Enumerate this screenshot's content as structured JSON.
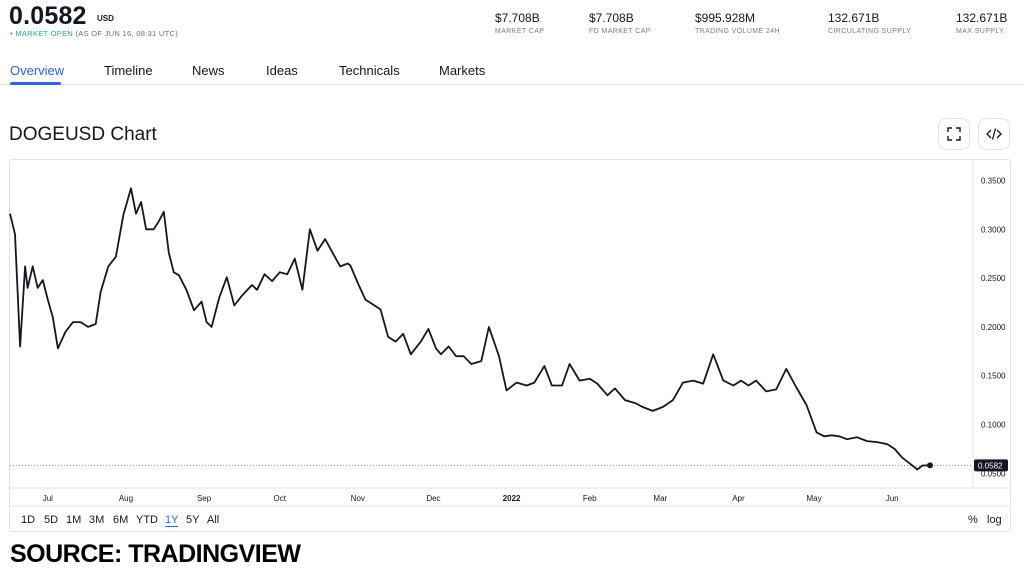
{
  "header": {
    "price": "0.0582",
    "currency": "USD",
    "status_dot": "•",
    "status_open": "MARKET OPEN",
    "status_time": "(AS OF JUN 16, 08:31 UTC)",
    "stats": [
      {
        "value": "$7.708B",
        "label": "MARKET CAP"
      },
      {
        "value": "$7.708B",
        "label": "FD MARKET CAP"
      },
      {
        "value": "$995.928M",
        "label": "TRADING VOLUME 24H"
      },
      {
        "value": "132.671B",
        "label": "CIRCULATING SUPPLY"
      },
      {
        "value": "132.671B",
        "label": "MAX SUPPLY"
      }
    ]
  },
  "tabs": [
    "Overview",
    "Timeline",
    "News",
    "Ideas",
    "Technicals",
    "Markets"
  ],
  "active_tab": "Overview",
  "chart_title": "DOGEUSD Chart",
  "ranges": [
    "1D",
    "5D",
    "1M",
    "3M",
    "6M",
    "YTD",
    "1Y",
    "5Y",
    "All"
  ],
  "active_range": "1Y",
  "scale_percent": "%",
  "scale_log": "log",
  "source": "SOURCE: TRADINGVIEW",
  "colors": {
    "accent": "#2962ff",
    "line": "#131722",
    "green": "#22ab94"
  },
  "chart_data": {
    "type": "line",
    "ylim": [
      0.035,
      0.37
    ],
    "y_ticks": [
      "0.3500",
      "0.3000",
      "0.2500",
      "0.2000",
      "0.1500",
      "0.1000",
      "0.0500"
    ],
    "y_tick_values": [
      0.35,
      0.3,
      0.25,
      0.2,
      0.15,
      0.1,
      0.05
    ],
    "x_ticks": [
      "Jul",
      "Aug",
      "Sep",
      "Oct",
      "Nov",
      "Dec",
      "2022",
      "Feb",
      "Mar",
      "Apr",
      "May",
      "Jun"
    ],
    "x_tick_dates": [
      "2021-07-01",
      "2021-08-01",
      "2021-09-01",
      "2021-10-01",
      "2021-11-01",
      "2021-12-01",
      "2022-01-01",
      "2022-02-01",
      "2022-03-01",
      "2022-04-01",
      "2022-05-01",
      "2022-06-01"
    ],
    "last_value": "0.0582",
    "last_value_num": 0.0582,
    "series": [
      {
        "x": [
          "2021-06-16",
          "2021-06-18",
          "2021-06-20",
          "2021-06-22",
          "2021-06-23",
          "2021-06-25",
          "2021-06-27",
          "2021-06-29",
          "2021-07-01",
          "2021-07-03",
          "2021-07-05",
          "2021-07-08",
          "2021-07-11",
          "2021-07-14",
          "2021-07-17",
          "2021-07-20",
          "2021-07-22",
          "2021-07-25",
          "2021-07-28",
          "2021-07-31",
          "2021-08-03",
          "2021-08-05",
          "2021-08-07",
          "2021-08-09",
          "2021-08-12",
          "2021-08-14",
          "2021-08-16",
          "2021-08-18",
          "2021-08-20",
          "2021-08-22",
          "2021-08-25",
          "2021-08-28",
          "2021-08-31",
          "2021-09-02",
          "2021-09-04",
          "2021-09-07",
          "2021-09-10",
          "2021-09-13",
          "2021-09-16",
          "2021-09-20",
          "2021-09-22",
          "2021-09-25",
          "2021-09-28",
          "2021-10-01",
          "2021-10-04",
          "2021-10-07",
          "2021-10-10",
          "2021-10-13",
          "2021-10-16",
          "2021-10-19",
          "2021-10-22",
          "2021-10-25",
          "2021-10-28",
          "2021-10-29",
          "2021-11-01",
          "2021-11-04",
          "2021-11-07",
          "2021-11-10",
          "2021-11-13",
          "2021-11-16",
          "2021-11-19",
          "2021-11-22",
          "2021-11-26",
          "2021-11-29",
          "2021-12-02",
          "2021-12-04",
          "2021-12-07",
          "2021-12-10",
          "2021-12-13",
          "2021-12-16",
          "2021-12-20",
          "2021-12-23",
          "2021-12-27",
          "2021-12-30",
          "2022-01-03",
          "2022-01-07",
          "2022-01-10",
          "2022-01-14",
          "2022-01-17",
          "2022-01-21",
          "2022-01-24",
          "2022-01-28",
          "2022-02-01",
          "2022-02-04",
          "2022-02-08",
          "2022-02-11",
          "2022-02-15",
          "2022-02-19",
          "2022-02-22",
          "2022-02-26",
          "2022-03-02",
          "2022-03-06",
          "2022-03-10",
          "2022-03-14",
          "2022-03-18",
          "2022-03-22",
          "2022-03-26",
          "2022-03-30",
          "2022-04-02",
          "2022-04-05",
          "2022-04-08",
          "2022-04-12",
          "2022-04-16",
          "2022-04-20",
          "2022-04-24",
          "2022-04-28",
          "2022-05-02",
          "2022-05-05",
          "2022-05-08",
          "2022-05-11",
          "2022-05-14",
          "2022-05-18",
          "2022-05-22",
          "2022-05-26",
          "2022-05-30",
          "2022-06-02",
          "2022-06-05",
          "2022-06-08",
          "2022-06-11",
          "2022-06-13",
          "2022-06-15",
          "2022-06-16"
        ],
        "values": [
          0.316,
          0.295,
          0.18,
          0.262,
          0.24,
          0.262,
          0.24,
          0.248,
          0.228,
          0.21,
          0.178,
          0.195,
          0.205,
          0.205,
          0.2,
          0.203,
          0.236,
          0.262,
          0.272,
          0.315,
          0.342,
          0.316,
          0.328,
          0.3,
          0.3,
          0.308,
          0.318,
          0.276,
          0.256,
          0.253,
          0.238,
          0.217,
          0.226,
          0.205,
          0.2,
          0.23,
          0.251,
          0.222,
          0.232,
          0.243,
          0.238,
          0.254,
          0.247,
          0.256,
          0.254,
          0.27,
          0.238,
          0.3,
          0.278,
          0.29,
          0.276,
          0.262,
          0.265,
          0.263,
          0.245,
          0.228,
          0.223,
          0.218,
          0.19,
          0.185,
          0.193,
          0.172,
          0.185,
          0.198,
          0.178,
          0.172,
          0.18,
          0.17,
          0.17,
          0.162,
          0.165,
          0.2,
          0.17,
          0.135,
          0.143,
          0.14,
          0.143,
          0.16,
          0.14,
          0.14,
          0.162,
          0.145,
          0.147,
          0.142,
          0.13,
          0.137,
          0.125,
          0.122,
          0.118,
          0.114,
          0.118,
          0.125,
          0.143,
          0.145,
          0.142,
          0.172,
          0.145,
          0.14,
          0.145,
          0.14,
          0.145,
          0.134,
          0.136,
          0.157,
          0.138,
          0.12,
          0.092,
          0.088,
          0.089,
          0.088,
          0.085,
          0.087,
          0.083,
          0.082,
          0.08,
          0.075,
          0.066,
          0.06,
          0.054,
          0.058,
          0.0582,
          0.0582
        ]
      }
    ]
  }
}
